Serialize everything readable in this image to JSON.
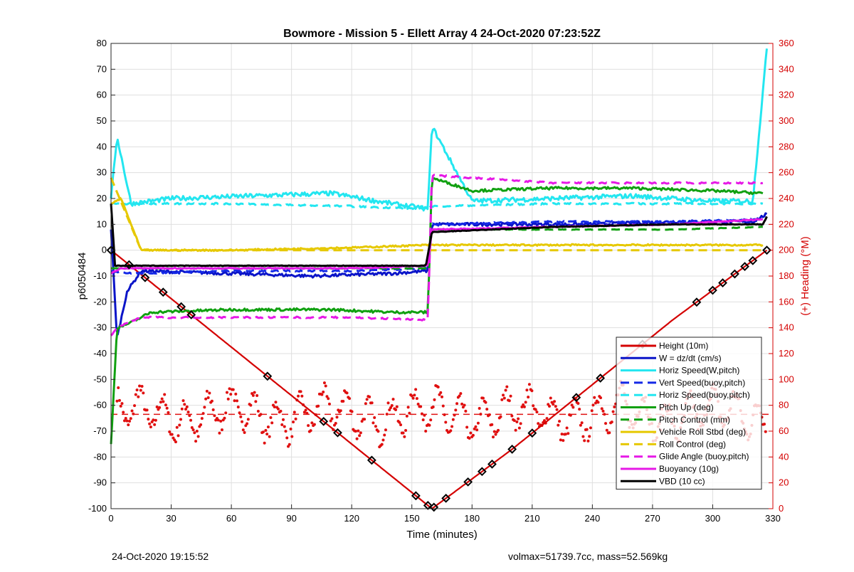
{
  "chart_data": {
    "type": "line",
    "title": "Bowmore - Mission 5 - Ellett Array 4 24-Oct-2020 07:23:52Z",
    "xlabel": "Time (minutes)",
    "ylabel": "p6050484",
    "y2label": "(+) Heading (°M)",
    "xlim": [
      0,
      330
    ],
    "ylim": [
      -100,
      80
    ],
    "y2lim": [
      0,
      360
    ],
    "xticks": [
      0,
      30,
      60,
      90,
      120,
      150,
      180,
      210,
      240,
      270,
      300,
      330
    ],
    "yticks": [
      -100,
      -90,
      -80,
      -70,
      -60,
      -50,
      -40,
      -30,
      -20,
      -10,
      0,
      10,
      20,
      30,
      40,
      50,
      60,
      70,
      80
    ],
    "y2ticks": [
      0,
      20,
      40,
      60,
      80,
      100,
      120,
      140,
      160,
      180,
      200,
      220,
      240,
      260,
      280,
      300,
      320,
      340,
      360
    ],
    "grid": true,
    "legend_position": "bottom-right",
    "series": [
      {
        "name": "Height (10m)",
        "color": "#d40000",
        "style": "solid",
        "x": [
          0,
          40,
          80,
          120,
          160,
          200,
          240,
          280,
          327
        ],
        "y": [
          0,
          -25,
          -50,
          -75,
          -100,
          -77,
          -52,
          -27,
          0
        ]
      },
      {
        "name": "W = dz/dt (cm/s)",
        "color": "#0a14c8",
        "style": "solid",
        "x": [
          0,
          3,
          8,
          15,
          60,
          100,
          140,
          158,
          160,
          200,
          240,
          280,
          320,
          327
        ],
        "y": [
          8,
          -34,
          -16,
          -8,
          -9,
          -10,
          -9,
          -8,
          10,
          10,
          10,
          11,
          11,
          14
        ]
      },
      {
        "name": "Horiz Speed(W,pitch)",
        "color": "#23e6f0",
        "style": "solid",
        "x": [
          0,
          3,
          10,
          30,
          70,
          110,
          140,
          158,
          160,
          180,
          220,
          260,
          300,
          320,
          327
        ],
        "y": [
          20,
          44,
          18,
          20,
          21,
          22,
          18,
          16,
          48,
          19,
          20,
          21,
          19,
          19,
          78
        ]
      },
      {
        "name": "Vert Speed(buoy,pitch)",
        "color": "#1428e6",
        "style": "dashed",
        "x": [
          0,
          10,
          60,
          120,
          158,
          160,
          220,
          280,
          325
        ],
        "y": [
          -8,
          -9,
          -8,
          -8,
          -7,
          10,
          11,
          11,
          12
        ]
      },
      {
        "name": "Horiz Speed(buoy,pitch)",
        "color": "#23e6f0",
        "style": "dashed",
        "x": [
          0,
          10,
          60,
          120,
          158,
          160,
          220,
          280,
          325
        ],
        "y": [
          18,
          18,
          18,
          17,
          16,
          17,
          18,
          18,
          18
        ]
      },
      {
        "name": "Pitch Up (deg)",
        "color": "#10a010",
        "style": "solid",
        "x": [
          0,
          3,
          10,
          20,
          60,
          110,
          140,
          158,
          160,
          180,
          220,
          260,
          300,
          325
        ],
        "y": [
          -75,
          -30,
          -28,
          -24,
          -23,
          -23,
          -24,
          -24,
          28,
          23,
          24,
          24,
          23,
          22
        ]
      },
      {
        "name": "Pitch Control (mm)",
        "color": "#10a010",
        "style": "dashed",
        "x": [
          0,
          15,
          60,
          120,
          158,
          160,
          220,
          280,
          325
        ],
        "y": [
          -7,
          -7,
          -7,
          -7,
          -7,
          8,
          8,
          8,
          9
        ]
      },
      {
        "name": "Vehicle Roll Stbd (deg)",
        "color": "#e6c800",
        "style": "solid",
        "x": [
          0,
          5,
          15,
          60,
          120,
          158,
          160,
          220,
          280,
          325
        ],
        "y": [
          18,
          20,
          0,
          0,
          1,
          2,
          2,
          2,
          2,
          2
        ]
      },
      {
        "name": "Roll Control (deg)",
        "color": "#e6c800",
        "style": "dashed",
        "x": [
          0,
          15,
          60,
          120,
          158,
          160,
          220,
          280,
          325
        ],
        "y": [
          28,
          0,
          0,
          0,
          0,
          0,
          0,
          0,
          0
        ]
      },
      {
        "name": "Glide Angle (buoy,pitch)",
        "color": "#e619e6",
        "style": "dashed",
        "x": [
          0,
          3,
          15,
          60,
          120,
          158,
          160,
          220,
          280,
          325
        ],
        "y": [
          -33,
          -30,
          -26,
          -26,
          -26,
          -27,
          29,
          26,
          26,
          26
        ]
      },
      {
        "name": "Buoyancy (10g)",
        "color": "#e619e6",
        "style": "solid",
        "x": [
          0,
          5,
          60,
          120,
          158,
          160,
          220,
          280,
          325
        ],
        "y": [
          -9,
          -7,
          -7,
          -7,
          -6,
          8,
          9,
          10,
          12
        ]
      },
      {
        "name": "VBD (10 cc)",
        "color": "#000000",
        "style": "solid",
        "x": [
          0,
          2,
          60,
          120,
          157,
          160,
          220,
          280,
          325,
          327
        ],
        "y": [
          18,
          -6,
          -6,
          -6,
          -6,
          7,
          9,
          10,
          10,
          13
        ]
      }
    ],
    "heading_series": {
      "color": "#e01010",
      "axis": "right",
      "mean": 73
    }
  },
  "footer": {
    "timestamp": "24-Oct-2020 19:15:52",
    "stats": "volmax=51739.7cc, mass=52.569kg"
  }
}
